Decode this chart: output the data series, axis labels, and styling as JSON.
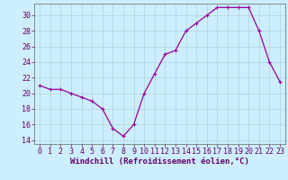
{
  "x": [
    0,
    1,
    2,
    3,
    4,
    5,
    6,
    7,
    8,
    9,
    10,
    11,
    12,
    13,
    14,
    15,
    16,
    17,
    18,
    19,
    20,
    21,
    22,
    23
  ],
  "y": [
    21,
    20.5,
    20.5,
    20,
    19.5,
    19,
    18,
    15.5,
    14.5,
    16,
    20,
    22.5,
    25,
    25.5,
    28,
    29,
    30,
    31,
    31,
    31,
    31,
    28,
    24,
    21.5
  ],
  "line_color": "#990099",
  "marker": "+",
  "background_color": "#cceeff",
  "grid_color": "#aacccc",
  "xlabel": "Windchill (Refroidissement éolien,°C)",
  "xlabel_color": "#660066",
  "tick_color": "#660066",
  "spine_color": "#666666",
  "ylim": [
    13.5,
    31.5
  ],
  "xlim": [
    -0.5,
    23.5
  ],
  "yticks": [
    14,
    16,
    18,
    20,
    22,
    24,
    26,
    28,
    30
  ],
  "xticks": [
    0,
    1,
    2,
    3,
    4,
    5,
    6,
    7,
    8,
    9,
    10,
    11,
    12,
    13,
    14,
    15,
    16,
    17,
    18,
    19,
    20,
    21,
    22,
    23
  ],
  "xlabel_fontsize": 6.5,
  "tick_fontsize": 6.0,
  "markersize": 2.5,
  "linewidth": 0.9
}
